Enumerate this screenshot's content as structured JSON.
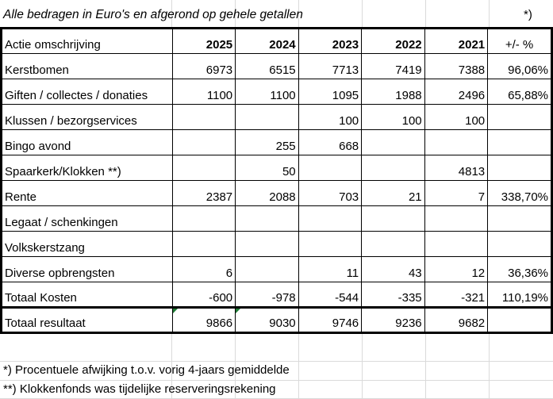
{
  "title": "Alle bedragen in Euro's en afgerond op gehele getallen",
  "title_note": "*)",
  "header": {
    "label": "Actie omschrijving",
    "years": [
      "2025",
      "2024",
      "2023",
      "2022",
      "2021"
    ],
    "pct": "+/- %"
  },
  "rows": [
    {
      "label": "Kerstbomen",
      "values": [
        "6973",
        "6515",
        "7713",
        "7419",
        "7388"
      ],
      "pct": "96,06%"
    },
    {
      "label": "Giften / collectes / donaties",
      "values": [
        "1100",
        "1100",
        "1095",
        "1988",
        "2496"
      ],
      "pct": "65,88%"
    },
    {
      "label": "Klussen / bezorgservices",
      "values": [
        "",
        "",
        "100",
        "100",
        "100"
      ],
      "pct": ""
    },
    {
      "label": "Bingo avond",
      "values": [
        "",
        "255",
        "668",
        "",
        ""
      ],
      "pct": ""
    },
    {
      "label": "Spaarkerk/Klokken **)",
      "values": [
        "",
        "50",
        "",
        "",
        "4813"
      ],
      "pct": ""
    },
    {
      "label": "Rente",
      "values": [
        "2387",
        "2088",
        "703",
        "21",
        "7"
      ],
      "pct": "338,70%"
    },
    {
      "label": "Legaat / schenkingen",
      "values": [
        "",
        "",
        "",
        "",
        ""
      ],
      "pct": ""
    },
    {
      "label": "Volkskerstzang",
      "values": [
        "",
        "",
        "",
        "",
        ""
      ],
      "pct": ""
    },
    {
      "label": "Diverse opbrengsten",
      "values": [
        "6",
        "",
        "11",
        "43",
        "12"
      ],
      "pct": "36,36%"
    },
    {
      "label": "Totaal Kosten",
      "values": [
        "-600",
        "-978",
        "-544",
        "-335",
        "-321"
      ],
      "pct": "110,19%"
    }
  ],
  "total": {
    "label": "Totaal resultaat",
    "values": [
      "9866",
      "9030",
      "9746",
      "9236",
      "9682"
    ],
    "pct": ""
  },
  "footnotes": [
    "*)   Procentuele afwijking t.o.v. vorig 4-jaars gemiddelde",
    "**)  Klokkenfonds was tijdelijke reserveringsrekening"
  ]
}
